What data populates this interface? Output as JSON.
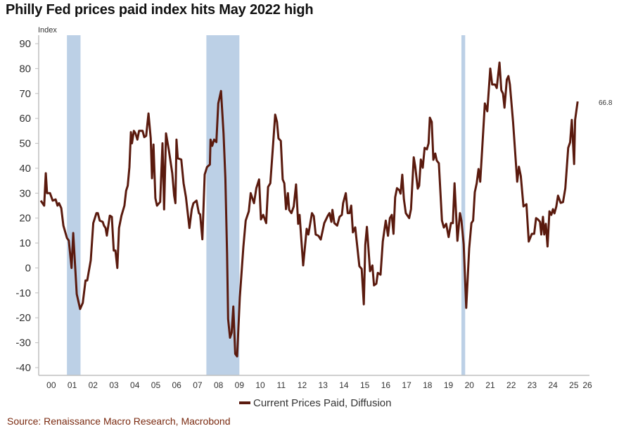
{
  "chart_data": {
    "type": "line",
    "title": "Philly Fed prices paid index hits May 2022 high",
    "ylabel": "Index",
    "xlabel": "",
    "x_unit": "two-digit year (years since 2000)",
    "xlim": [
      0,
      26.2
    ],
    "ylim": [
      -40,
      90
    ],
    "yticks": [
      -40,
      -30,
      -20,
      -10,
      0,
      10,
      20,
      30,
      40,
      50,
      60,
      70,
      80,
      90
    ],
    "xtick_labels": [
      "00",
      "01",
      "02",
      "03",
      "04",
      "05",
      "06",
      "07",
      "08",
      "09",
      "10",
      "11",
      "12",
      "13",
      "14",
      "15",
      "16",
      "17",
      "18",
      "19",
      "20",
      "21",
      "22",
      "23",
      "24",
      "25",
      "26"
    ],
    "grid": false,
    "legend_position": "bottom-center",
    "last_value_label": "66.8",
    "recessions": [
      [
        1.25,
        1.9
      ],
      [
        7.92,
        9.5
      ],
      [
        20.12,
        20.3
      ]
    ],
    "colors": {
      "line": "#5a1a0e",
      "recession": "#bcd0e6",
      "axis": "#bfbfbf"
    },
    "series": [
      {
        "name": "Current Prices Paid, Diffusion",
        "x": [
          0.0,
          0.16,
          0.24,
          0.3,
          0.44,
          0.57,
          0.71,
          0.8,
          0.87,
          0.98,
          1.08,
          1.25,
          1.34,
          1.47,
          1.55,
          1.72,
          1.88,
          2.01,
          2.14,
          2.22,
          2.39,
          2.51,
          2.66,
          2.73,
          2.82,
          2.96,
          3.02,
          3.1,
          3.16,
          3.3,
          3.4,
          3.49,
          3.57,
          3.66,
          3.74,
          3.86,
          4.0,
          4.08,
          4.16,
          4.24,
          4.31,
          4.36,
          4.45,
          4.53,
          4.62,
          4.7,
          4.87,
          4.95,
          5.04,
          5.15,
          5.26,
          5.32,
          5.39,
          5.48,
          5.56,
          5.71,
          5.82,
          5.9,
          5.99,
          6.13,
          6.29,
          6.38,
          6.44,
          6.49,
          6.55,
          6.72,
          6.83,
          6.94,
          7.11,
          7.22,
          7.3,
          7.45,
          7.56,
          7.62,
          7.73,
          7.84,
          7.95,
          8.09,
          8.12,
          8.2,
          8.29,
          8.4,
          8.49,
          8.62,
          8.74,
          8.83,
          8.91,
          8.96,
          9.05,
          9.13,
          9.21,
          9.3,
          9.39,
          9.52,
          9.69,
          9.8,
          9.95,
          10.04,
          10.2,
          10.31,
          10.44,
          10.53,
          10.64,
          10.78,
          10.87,
          10.98,
          11.09,
          11.21,
          11.3,
          11.37,
          11.48,
          11.57,
          11.65,
          11.73,
          11.82,
          11.88,
          11.99,
          12.1,
          12.21,
          12.31,
          12.38,
          12.55,
          12.72,
          12.8,
          12.97,
          13.06,
          13.15,
          13.28,
          13.39,
          13.56,
          13.73,
          13.81,
          13.9,
          13.95,
          14.04,
          14.18,
          14.29,
          14.4,
          14.46,
          14.59,
          14.68,
          14.77,
          14.85,
          14.93,
          15.04,
          15.24,
          15.35,
          15.45,
          15.52,
          15.6,
          15.75,
          15.86,
          15.94,
          16.05,
          16.12,
          16.25,
          16.36,
          16.5,
          16.61,
          16.7,
          16.79,
          16.87,
          16.95,
          17.04,
          17.15,
          17.21,
          17.29,
          17.37,
          17.46,
          17.62,
          17.71,
          17.84,
          17.91,
          18.03,
          18.1,
          18.18,
          18.27,
          18.36,
          18.47,
          18.55,
          18.61,
          18.7,
          18.78,
          18.87,
          18.94,
          19.04,
          19.19,
          19.28,
          19.39,
          19.51,
          19.62,
          19.71,
          19.79,
          19.86,
          19.93,
          20.05,
          20.12,
          20.23,
          20.35,
          20.49,
          20.6,
          20.68,
          20.76,
          20.85,
          20.94,
          21.02,
          21.11,
          21.24,
          21.36,
          21.5,
          21.59,
          21.73,
          21.81,
          21.94,
          22.03,
          22.11,
          22.18,
          22.29,
          22.37,
          22.44,
          22.59,
          22.74,
          22.79,
          22.87,
          22.96,
          23.09,
          23.23,
          23.34,
          23.49,
          23.6,
          23.69,
          23.79,
          23.88,
          23.94,
          24.02,
          24.08,
          24.16,
          24.24,
          24.33,
          24.42,
          24.5,
          24.57,
          24.66,
          24.74,
          24.87,
          24.98,
          25.09,
          25.23,
          25.32,
          25.4,
          25.51,
          25.56,
          25.68
        ],
        "values": [
          27,
          25,
          38,
          30,
          30,
          27,
          27.5,
          25,
          26,
          24,
          17,
          12,
          11,
          0,
          14,
          -10.5,
          -16.5,
          -14,
          -5,
          -5,
          3,
          18,
          22,
          22,
          19,
          18.5,
          17,
          16,
          13,
          21,
          20.5,
          7,
          7,
          0,
          16,
          21,
          25,
          31,
          33,
          40.5,
          54.5,
          50,
          55,
          54,
          51.5,
          55,
          55,
          52.5,
          53,
          62,
          52,
          36,
          49.5,
          28,
          25,
          26.5,
          50,
          23.5,
          54,
          47,
          38,
          29,
          26,
          51.5,
          44,
          43.5,
          34,
          28.5,
          16,
          23.5,
          26,
          27,
          22,
          21.5,
          11.5,
          37.5,
          40.5,
          41.5,
          51.5,
          49,
          51.5,
          50.5,
          66,
          71,
          54,
          36,
          6,
          -20.5,
          -28,
          -26,
          -15.5,
          -34.5,
          -35.5,
          -12,
          8.5,
          19,
          22.7,
          30,
          26,
          32,
          35.5,
          19.5,
          21.3,
          18,
          32.5,
          34,
          47,
          61.5,
          58.6,
          52,
          51,
          35.5,
          34,
          23.6,
          30,
          23.3,
          22,
          24.7,
          33.5,
          17.7,
          21.3,
          1,
          15.7,
          13.4,
          22,
          20.8,
          13.4,
          12.9,
          11.4,
          18,
          21,
          22,
          18.5,
          23.3,
          18,
          17,
          20.5,
          21.3,
          26,
          30,
          22,
          22,
          25,
          14.3,
          16.3,
          0.7,
          -0.4,
          -14.6,
          9.2,
          16.5,
          -1.3,
          1,
          -7,
          -6.3,
          -2,
          -2.7,
          10.6,
          19,
          12.9,
          20,
          21.3,
          13.7,
          28.4,
          32,
          31.2,
          29.8,
          37.4,
          27.6,
          22,
          20,
          23.6,
          44.4,
          40.7,
          31.8,
          33,
          43.5,
          40.2,
          48.2,
          47.6,
          50,
          60.3,
          58.6,
          43.4,
          45.9,
          43.1,
          42,
          19,
          16.2,
          17.7,
          12.4,
          18,
          18,
          34,
          22.7,
          10.9,
          22,
          19,
          9.5,
          -16,
          7.8,
          18,
          19,
          30.4,
          34,
          39.7,
          34.6,
          47.3,
          66,
          62.9,
          80,
          73.6,
          73.6,
          72.2,
          82.4,
          71.3,
          70,
          64.3,
          75.6,
          77,
          73.6,
          58.6,
          40.6,
          34.6,
          40.6,
          36.9,
          24.7,
          25.6,
          10.6,
          13.7,
          13.7,
          20,
          19.4,
          18.5,
          13.4,
          20.5,
          13.4,
          17.7,
          8.6,
          22.7,
          21.3,
          23.6,
          21.9,
          24.7,
          29,
          26.1,
          26.4,
          32,
          48.2,
          50.4,
          59.4,
          41.7,
          59.4,
          66.8
        ]
      }
    ]
  },
  "source": "Source: Renaissance Macro Research, Macrobond"
}
